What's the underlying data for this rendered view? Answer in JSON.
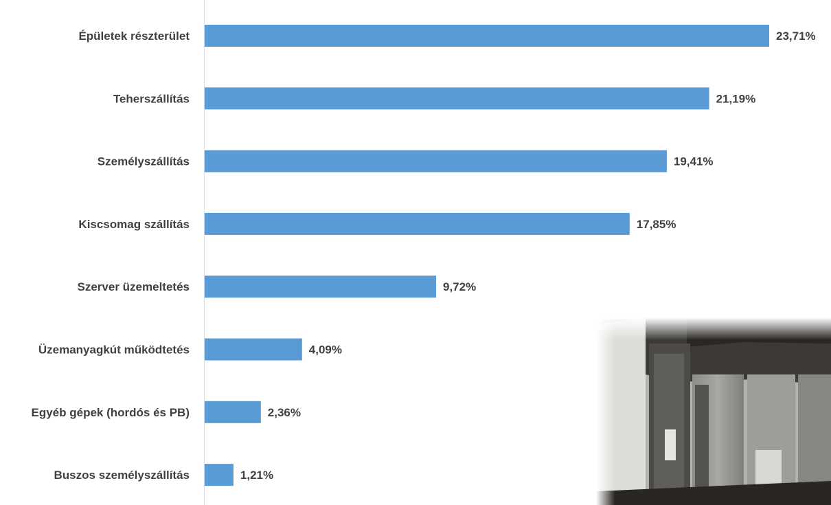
{
  "chart_data": {
    "type": "bar",
    "orientation": "horizontal",
    "categories": [
      "Épületek részterület",
      "Teherszállítás",
      "Személyszállítás",
      "Kiscsomag szállítás",
      "Szerver üzemeltetés",
      "Üzemanyagkút működtetés",
      "Egyéb gépek (hordós és PB)",
      "Buszos személyszállítás"
    ],
    "values": [
      23.71,
      21.19,
      19.41,
      17.85,
      9.72,
      4.09,
      2.36,
      1.21
    ],
    "data_labels": [
      "23,71%",
      "21,19%",
      "19,41%",
      "17,85%",
      "9,72%",
      "4,09%",
      "2,36%",
      "1,21%"
    ],
    "xlim": [
      0,
      23.71
    ],
    "grid": false,
    "legend": "none",
    "colors": {
      "bar": "#5b9bd5",
      "axis": "#d9d9d9",
      "text": "#404040"
    }
  },
  "photo": {
    "icon": "server-room-photo"
  }
}
